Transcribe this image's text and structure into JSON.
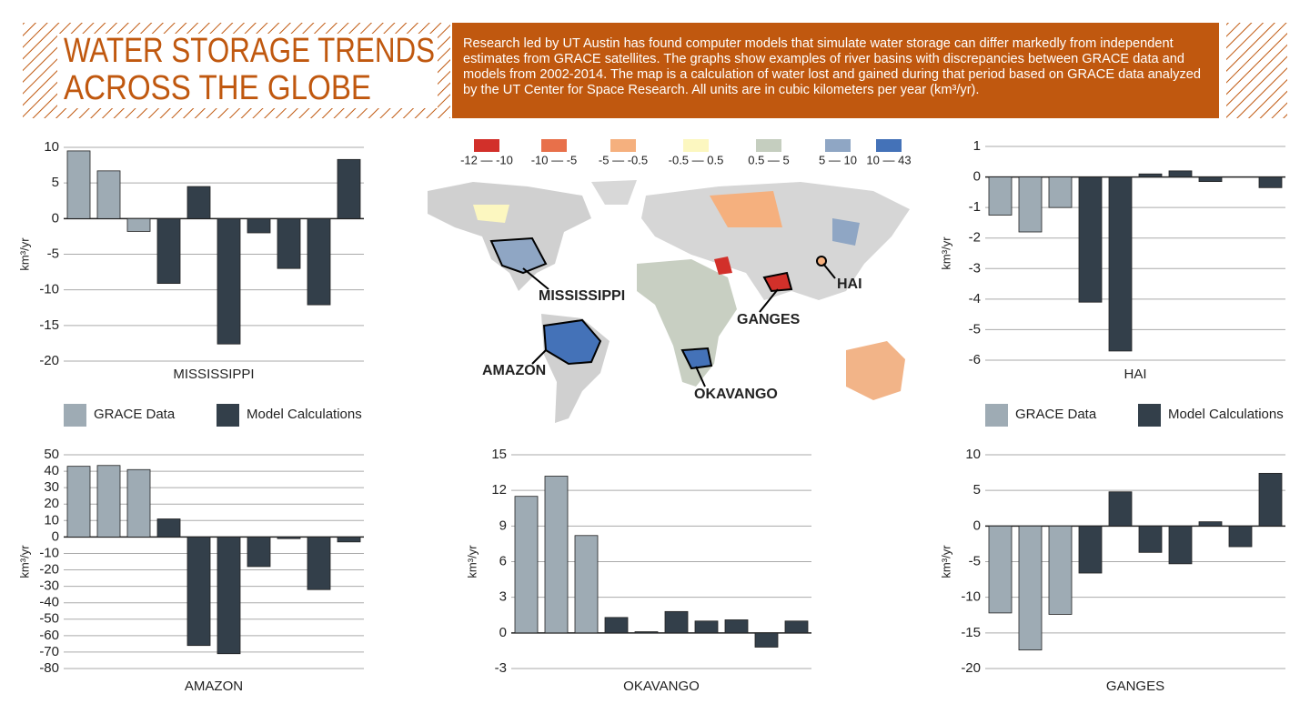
{
  "header": {
    "title_lines": [
      "WATER STORAGE TRENDS",
      "ACROSS THE GLOBE"
    ],
    "description": "Research led by UT Austin has found computer models that simulate water storage can differ markedly from independent estimates from GRACE satellites. The graphs show examples of river basins with discrepancies between GRACE data and models from 2002-2014. The map is a calculation of water lost and gained during that period based on GRACE data analyzed by the UT Center for Space Research. All units are in cubic kilometers per year (km³/yr)."
  },
  "map": {
    "legend": [
      {
        "label": "-12 — -10",
        "color": "#d2302a"
      },
      {
        "label": "-10 — -5",
        "color": "#e8704a"
      },
      {
        "label": "-5 — -0.5",
        "color": "#f5b07e"
      },
      {
        "label": "-0.5 — 0.5",
        "color": "#fcf7c0"
      },
      {
        "label": "0.5 — 5",
        "color": "#c5cebf"
      },
      {
        "label": "5 — 10",
        "color": "#8fa6c4"
      },
      {
        "label": "10 — 43",
        "color": "#4472b8"
      }
    ],
    "labels": [
      "MISSISSIPPI",
      "GANGES",
      "HAI",
      "AMAZON",
      "OKAVANGO"
    ]
  },
  "chart_data": [
    {
      "type": "bar",
      "title": "MISSISSIPPI",
      "y_label": "km³/yr",
      "legend": "bottom",
      "categories": [
        null,
        null,
        null,
        null,
        null,
        null,
        null,
        null,
        null,
        null
      ],
      "series": [
        {
          "name": "GRACE Data",
          "color": "#9eabb4",
          "values": [
            9.5,
            6.7,
            -1.8,
            null,
            null,
            null,
            null,
            null,
            null,
            null
          ]
        },
        {
          "name": "Model Calculations",
          "color": "#333f4a",
          "values": [
            null,
            null,
            null,
            -9.1,
            4.5,
            -17.6,
            -2.0,
            -7.0,
            -12.1,
            8.3
          ]
        }
      ],
      "ylim": [
        -20,
        10
      ],
      "yticks": [
        -20,
        -15,
        -10,
        -5,
        0,
        5,
        10
      ],
      "grid": true
    },
    {
      "type": "bar",
      "title": "HAI",
      "y_label": "km³/yr",
      "legend": "bottom",
      "categories": [
        null,
        null,
        null,
        null,
        null,
        null,
        null,
        null,
        null,
        null
      ],
      "series": [
        {
          "name": "GRACE Data",
          "color": "#9eabb4",
          "values": [
            -1.25,
            -1.8,
            -1.0,
            null,
            null,
            null,
            null,
            null,
            null,
            null
          ]
        },
        {
          "name": "Model Calculations",
          "color": "#333f4a",
          "values": [
            null,
            null,
            null,
            -4.1,
            -5.7,
            0.1,
            0.2,
            -0.15,
            0,
            -0.35
          ]
        }
      ],
      "ylim": [
        -6,
        1
      ],
      "yticks": [
        -6,
        -5,
        -4,
        -3,
        -2,
        -1,
        0,
        1
      ],
      "grid": true
    },
    {
      "type": "bar",
      "title": "AMAZON",
      "y_label": "km³/yr",
      "categories": [
        null,
        null,
        null,
        null,
        null,
        null,
        null,
        null,
        null,
        null
      ],
      "series": [
        {
          "name": "GRACE Data",
          "color": "#9eabb4",
          "values": [
            43,
            43.5,
            41,
            null,
            null,
            null,
            null,
            null,
            null,
            null
          ]
        },
        {
          "name": "Model Calculations",
          "color": "#333f4a",
          "values": [
            null,
            null,
            null,
            11,
            -66,
            -71,
            -18,
            -1,
            -32,
            -3
          ]
        }
      ],
      "ylim": [
        -80,
        50
      ],
      "yticks": [
        -80,
        -70,
        -60,
        -50,
        -40,
        -30,
        -20,
        -10,
        0,
        10,
        20,
        30,
        40,
        50
      ],
      "grid": true
    },
    {
      "type": "bar",
      "title": "OKAVANGO",
      "y_label": "km³/yr",
      "categories": [
        null,
        null,
        null,
        null,
        null,
        null,
        null,
        null,
        null,
        null
      ],
      "series": [
        {
          "name": "GRACE Data",
          "color": "#9eabb4",
          "values": [
            11.5,
            13.2,
            8.2,
            null,
            null,
            null,
            null,
            null,
            null,
            null
          ]
        },
        {
          "name": "Model Calculations",
          "color": "#333f4a",
          "values": [
            null,
            null,
            null,
            1.3,
            0.1,
            1.8,
            1.0,
            1.1,
            -1.2,
            1.0
          ]
        }
      ],
      "ylim": [
        -3,
        15
      ],
      "yticks": [
        -3,
        0,
        3,
        6,
        9,
        12,
        15
      ],
      "grid": true
    },
    {
      "type": "bar",
      "title": "GANGES",
      "y_label": "km³/yr",
      "categories": [
        null,
        null,
        null,
        null,
        null,
        null,
        null,
        null,
        null,
        null
      ],
      "series": [
        {
          "name": "GRACE Data",
          "color": "#9eabb4",
          "values": [
            -12.2,
            -17.4,
            -12.4,
            null,
            null,
            null,
            null,
            null,
            null,
            null
          ]
        },
        {
          "name": "Model Calculations",
          "color": "#333f4a",
          "values": [
            null,
            null,
            null,
            -6.6,
            4.8,
            -3.7,
            -5.3,
            0.6,
            -2.9,
            7.4
          ]
        }
      ],
      "ylim": [
        -20,
        10
      ],
      "yticks": [
        -20,
        -15,
        -10,
        -5,
        0,
        5,
        10
      ],
      "grid": true
    }
  ]
}
